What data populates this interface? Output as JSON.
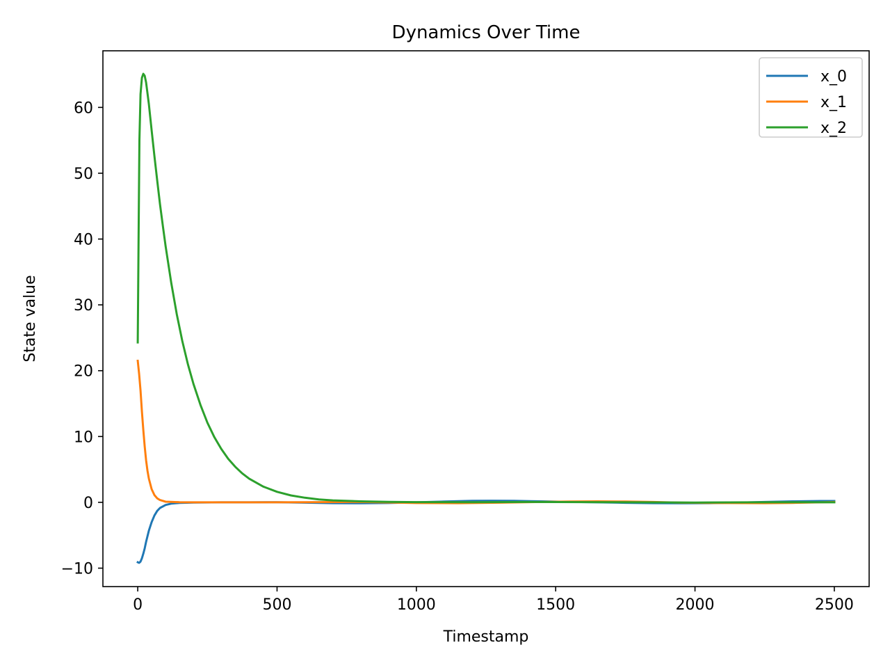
{
  "chart_data": {
    "type": "line",
    "title": "Dynamics Over Time",
    "xlabel": "Timestamp",
    "ylabel": "State value",
    "xlim": [
      -125,
      2625
    ],
    "ylim": [
      -12.8,
      68.6
    ],
    "xticks": [
      0,
      500,
      1000,
      1500,
      2000,
      2500
    ],
    "xtick_labels": [
      "0",
      "500",
      "1000",
      "1500",
      "2000",
      "2500"
    ],
    "yticks": [
      -10,
      0,
      10,
      20,
      30,
      40,
      50,
      60
    ],
    "ytick_labels": [
      "−10",
      "0",
      "10",
      "20",
      "30",
      "40",
      "50",
      "60"
    ],
    "grid": false,
    "legend_position": "top-right",
    "series": [
      {
        "name": "x_0",
        "color": "#1f77b4",
        "points": [
          [
            0,
            -9.1
          ],
          [
            5,
            -9.2
          ],
          [
            10,
            -9.0
          ],
          [
            15,
            -8.5
          ],
          [
            20,
            -7.8
          ],
          [
            25,
            -7.0
          ],
          [
            30,
            -6.0
          ],
          [
            40,
            -4.3
          ],
          [
            50,
            -3.0
          ],
          [
            60,
            -2.0
          ],
          [
            70,
            -1.3
          ],
          [
            80,
            -0.85
          ],
          [
            100,
            -0.4
          ],
          [
            120,
            -0.2
          ],
          [
            150,
            -0.08
          ],
          [
            200,
            -0.03
          ],
          [
            300,
            0.0
          ],
          [
            400,
            0.0
          ],
          [
            500,
            0.02
          ],
          [
            600,
            -0.05
          ],
          [
            700,
            -0.12
          ],
          [
            800,
            -0.15
          ],
          [
            900,
            -0.1
          ],
          [
            1000,
            0.0
          ],
          [
            1100,
            0.12
          ],
          [
            1200,
            0.22
          ],
          [
            1270,
            0.25
          ],
          [
            1350,
            0.22
          ],
          [
            1450,
            0.15
          ],
          [
            1550,
            0.07
          ],
          [
            1650,
            0.0
          ],
          [
            1750,
            -0.07
          ],
          [
            1850,
            -0.12
          ],
          [
            1950,
            -0.15
          ],
          [
            2050,
            -0.12
          ],
          [
            2150,
            -0.05
          ],
          [
            2250,
            0.05
          ],
          [
            2350,
            0.15
          ],
          [
            2450,
            0.2
          ],
          [
            2500,
            0.2
          ]
        ]
      },
      {
        "name": "x_1",
        "color": "#ff7f0e",
        "points": [
          [
            0,
            21.5
          ],
          [
            5,
            19.5
          ],
          [
            10,
            17.0
          ],
          [
            15,
            13.8
          ],
          [
            20,
            11.0
          ],
          [
            25,
            8.5
          ],
          [
            30,
            6.4
          ],
          [
            35,
            4.8
          ],
          [
            40,
            3.6
          ],
          [
            50,
            2.0
          ],
          [
            60,
            1.1
          ],
          [
            70,
            0.6
          ],
          [
            80,
            0.35
          ],
          [
            100,
            0.1
          ],
          [
            150,
            0.02
          ],
          [
            200,
            0.0
          ],
          [
            400,
            0.0
          ],
          [
            600,
            0.02
          ],
          [
            800,
            0.05
          ],
          [
            1000,
            -0.1
          ],
          [
            1150,
            -0.13
          ],
          [
            1300,
            -0.05
          ],
          [
            1450,
            0.05
          ],
          [
            1550,
            0.12
          ],
          [
            1650,
            0.15
          ],
          [
            1750,
            0.12
          ],
          [
            1850,
            0.05
          ],
          [
            1950,
            -0.05
          ],
          [
            2100,
            -0.1
          ],
          [
            2250,
            -0.12
          ],
          [
            2350,
            -0.08
          ],
          [
            2450,
            0.0
          ],
          [
            2500,
            0.05
          ]
        ]
      },
      {
        "name": "x_2",
        "color": "#2ca02c",
        "points": [
          [
            0,
            24.3
          ],
          [
            3,
            40.0
          ],
          [
            6,
            55.0
          ],
          [
            10,
            62.0
          ],
          [
            15,
            64.5
          ],
          [
            20,
            65.1
          ],
          [
            25,
            64.8
          ],
          [
            30,
            63.8
          ],
          [
            40,
            60.5
          ],
          [
            50,
            56.5
          ],
          [
            60,
            52.6
          ],
          [
            70,
            48.9
          ],
          [
            80,
            45.3
          ],
          [
            90,
            42.0
          ],
          [
            100,
            38.9
          ],
          [
            120,
            33.4
          ],
          [
            140,
            28.6
          ],
          [
            160,
            24.5
          ],
          [
            180,
            21.0
          ],
          [
            200,
            18.0
          ],
          [
            225,
            14.8
          ],
          [
            250,
            12.1
          ],
          [
            275,
            9.9
          ],
          [
            300,
            8.1
          ],
          [
            325,
            6.6
          ],
          [
            350,
            5.4
          ],
          [
            375,
            4.4
          ],
          [
            400,
            3.6
          ],
          [
            450,
            2.4
          ],
          [
            500,
            1.6
          ],
          [
            550,
            1.05
          ],
          [
            600,
            0.7
          ],
          [
            650,
            0.45
          ],
          [
            700,
            0.3
          ],
          [
            800,
            0.15
          ],
          [
            900,
            0.08
          ],
          [
            1000,
            0.03
          ],
          [
            1200,
            0.02
          ],
          [
            1400,
            0.05
          ],
          [
            1600,
            0.03
          ],
          [
            1800,
            0.0
          ],
          [
            2000,
            -0.03
          ],
          [
            2200,
            0.0
          ],
          [
            2400,
            0.02
          ],
          [
            2500,
            0.0
          ]
        ]
      }
    ]
  }
}
